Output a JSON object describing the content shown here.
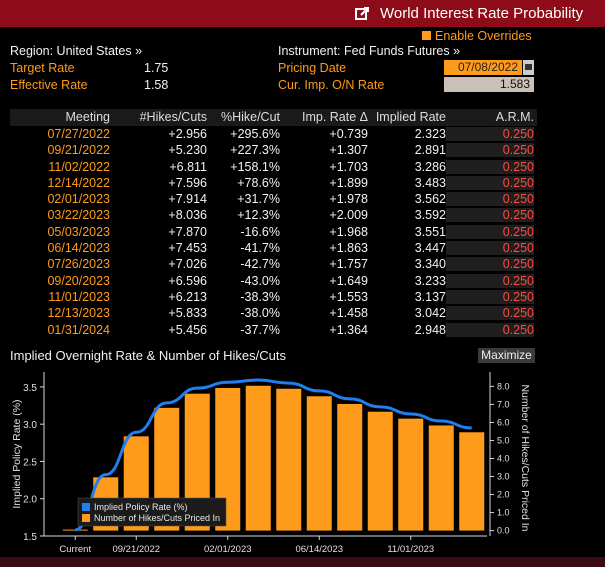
{
  "window": {
    "title": "World Interest Rate Probability",
    "title_color": "#8e0b1a"
  },
  "enable_overrides": "Enable Overrides",
  "region": {
    "label": "Region: United States »"
  },
  "instrument": {
    "label": "Instrument: Fed Funds Futures »"
  },
  "target_rate": {
    "label": "Target Rate",
    "value": "1.75"
  },
  "effective_rate": {
    "label": "Effective Rate",
    "value": "1.58"
  },
  "pricing_date": {
    "label": "Pricing Date",
    "value": "07/08/2022"
  },
  "cur_imp": {
    "label": "Cur. Imp. O/N Rate",
    "value": "1.583"
  },
  "table": {
    "headers": [
      "Meeting",
      "#Hikes/Cuts",
      "%Hike/Cut",
      "Imp. Rate Δ",
      "Implied Rate",
      "A.R.M."
    ],
    "rows": [
      [
        "07/27/2022",
        "+2.956",
        "+295.6%",
        "+0.739",
        "2.323",
        "0.250"
      ],
      [
        "09/21/2022",
        "+5.230",
        "+227.3%",
        "+1.307",
        "2.891",
        "0.250"
      ],
      [
        "11/02/2022",
        "+6.811",
        "+158.1%",
        "+1.703",
        "3.286",
        "0.250"
      ],
      [
        "12/14/2022",
        "+7.596",
        "+78.6%",
        "+1.899",
        "3.483",
        "0.250"
      ],
      [
        "02/01/2023",
        "+7.914",
        "+31.7%",
        "+1.978",
        "3.562",
        "0.250"
      ],
      [
        "03/22/2023",
        "+8.036",
        "+12.3%",
        "+2.009",
        "3.592",
        "0.250"
      ],
      [
        "05/03/2023",
        "+7.870",
        "-16.6%",
        "+1.968",
        "3.551",
        "0.250"
      ],
      [
        "06/14/2023",
        "+7.453",
        "-41.7%",
        "+1.863",
        "3.447",
        "0.250"
      ],
      [
        "07/26/2023",
        "+7.026",
        "-42.7%",
        "+1.757",
        "3.340",
        "0.250"
      ],
      [
        "09/20/2023",
        "+6.596",
        "-43.0%",
        "+1.649",
        "3.233",
        "0.250"
      ],
      [
        "11/01/2023",
        "+6.213",
        "-38.3%",
        "+1.553",
        "3.137",
        "0.250"
      ],
      [
        "12/13/2023",
        "+5.833",
        "-38.0%",
        "+1.458",
        "3.042",
        "0.250"
      ],
      [
        "01/31/2024",
        "+5.456",
        "-37.7%",
        "+1.364",
        "2.948",
        "0.250"
      ]
    ]
  },
  "chart_header": {
    "title": "Implied Overnight Rate & Number of Hikes/Cuts",
    "maximize": "Maximize"
  },
  "chart_data": {
    "type": "bar",
    "title": "Implied Overnight Rate & Number of Hikes/Cuts",
    "ylabel": "Implied Policy Rate (%)",
    "y2label": "Number of Hikes/Cuts Priced In",
    "ylim": [
      1.5,
      3.7
    ],
    "y2lim": [
      -0.3,
      8.8
    ],
    "yticks": [
      "1.5",
      "2.0",
      "2.5",
      "3.0",
      "3.5"
    ],
    "y2ticks": [
      "0.0",
      "1.0",
      "2.0",
      "3.0",
      "4.0",
      "5.0",
      "6.0",
      "7.0",
      "8.0"
    ],
    "xtick_labels": [
      "Current",
      "09/21/2022",
      "02/01/2023",
      "06/14/2023",
      "11/01/2023"
    ],
    "xtick_index": [
      0,
      2,
      5,
      8,
      11
    ],
    "categories": [
      "Current",
      "07/27/2022",
      "09/21/2022",
      "11/02/2022",
      "12/14/2022",
      "02/01/2023",
      "03/22/2023",
      "05/03/2023",
      "06/14/2023",
      "07/26/2023",
      "09/20/2023",
      "11/01/2023",
      "12/13/2023",
      "01/31/2024"
    ],
    "series": [
      {
        "name": "Implied Policy Rate (%)",
        "type": "line",
        "color": "#1f7ff0",
        "values": [
          1.583,
          2.323,
          2.891,
          3.286,
          3.483,
          3.562,
          3.592,
          3.551,
          3.447,
          3.34,
          3.233,
          3.137,
          3.042,
          2.948
        ]
      },
      {
        "name": "Number of Hikes/Cuts Priced In",
        "type": "bar",
        "color": "#ff9b1a",
        "values": [
          0,
          2.956,
          5.23,
          6.811,
          7.596,
          7.914,
          8.036,
          7.87,
          7.453,
          7.026,
          6.596,
          6.213,
          5.833,
          5.456
        ]
      }
    ],
    "legend": "bottom-left",
    "grid": false
  }
}
